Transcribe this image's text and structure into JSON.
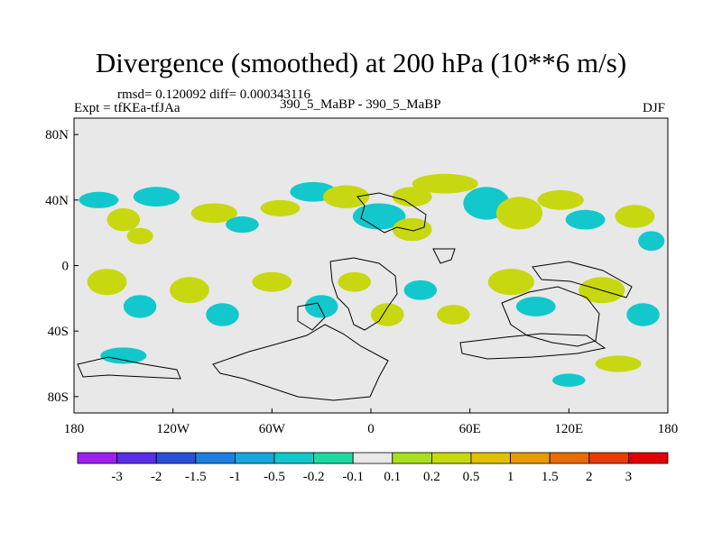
{
  "chart_data": {
    "type": "heatmap",
    "title": "Divergence (smoothed) at 200 hPa (10**6 m/s)",
    "stats_text": "rmsd= 0.120092 diff= 0.000343116",
    "left_label": "Expt = tfKEa-tfJAa",
    "center_label": "390_5_MaBP - 390_5_MaBP",
    "right_label": "DJF",
    "x_ticks": [
      {
        "value": -180,
        "label": "180"
      },
      {
        "value": -120,
        "label": "120W"
      },
      {
        "value": -60,
        "label": "60W"
      },
      {
        "value": 0,
        "label": "0"
      },
      {
        "value": 60,
        "label": "60E"
      },
      {
        "value": 120,
        "label": "120E"
      },
      {
        "value": 180,
        "label": "180"
      }
    ],
    "y_ticks": [
      {
        "value": 80,
        "label": "80N"
      },
      {
        "value": 40,
        "label": "40N"
      },
      {
        "value": 0,
        "label": "0"
      },
      {
        "value": -40,
        "label": "40S"
      },
      {
        "value": -80,
        "label": "80S"
      }
    ],
    "xlim": [
      -180,
      180
    ],
    "ylim": [
      -90,
      90
    ],
    "colorbar": {
      "labels": [
        "-3",
        "-2",
        "-1.5",
        "-1",
        "-0.5",
        "-0.2",
        "-0.1",
        "0.1",
        "0.2",
        "0.5",
        "1",
        "1.5",
        "2",
        "3"
      ],
      "colors": [
        "#a020f0",
        "#5a2ee8",
        "#2a4fd8",
        "#1e7ee0",
        "#16a8dc",
        "#12c8cc",
        "#1ed9a0",
        "#e8e8e8",
        "#a8e020",
        "#c8d810",
        "#e0c000",
        "#e89a00",
        "#e86c00",
        "#e83c00",
        "#e00000"
      ]
    },
    "anomalies": [
      {
        "lon": -165,
        "lat": 40,
        "rx": 12,
        "ry": 5,
        "v": -0.3
      },
      {
        "lon": -150,
        "lat": 28,
        "rx": 10,
        "ry": 7,
        "v": 0.3
      },
      {
        "lon": -130,
        "lat": 42,
        "rx": 14,
        "ry": 6,
        "v": -0.3
      },
      {
        "lon": -140,
        "lat": 18,
        "rx": 8,
        "ry": 5,
        "v": 0.3
      },
      {
        "lon": -95,
        "lat": 32,
        "rx": 14,
        "ry": 6,
        "v": 0.3
      },
      {
        "lon": -78,
        "lat": 25,
        "rx": 10,
        "ry": 5,
        "v": -0.3
      },
      {
        "lon": -55,
        "lat": 35,
        "rx": 12,
        "ry": 5,
        "v": 0.3
      },
      {
        "lon": -35,
        "lat": 45,
        "rx": 14,
        "ry": 6,
        "v": -0.3
      },
      {
        "lon": -15,
        "lat": 42,
        "rx": 14,
        "ry": 7,
        "v": 0.3
      },
      {
        "lon": 5,
        "lat": 30,
        "rx": 16,
        "ry": 8,
        "v": -0.5
      },
      {
        "lon": 25,
        "lat": 42,
        "rx": 12,
        "ry": 6,
        "v": 0.3
      },
      {
        "lon": 25,
        "lat": 22,
        "rx": 12,
        "ry": 7,
        "v": 0.3
      },
      {
        "lon": 45,
        "lat": 50,
        "rx": 20,
        "ry": 6,
        "v": 0.3
      },
      {
        "lon": 70,
        "lat": 38,
        "rx": 14,
        "ry": 10,
        "v": -0.5
      },
      {
        "lon": 90,
        "lat": 32,
        "rx": 14,
        "ry": 10,
        "v": 0.3
      },
      {
        "lon": 115,
        "lat": 40,
        "rx": 14,
        "ry": 6,
        "v": 0.3
      },
      {
        "lon": 130,
        "lat": 28,
        "rx": 12,
        "ry": 6,
        "v": -0.3
      },
      {
        "lon": 160,
        "lat": 30,
        "rx": 12,
        "ry": 7,
        "v": 0.3
      },
      {
        "lon": 170,
        "lat": 15,
        "rx": 8,
        "ry": 6,
        "v": -0.3
      },
      {
        "lon": -160,
        "lat": -10,
        "rx": 12,
        "ry": 8,
        "v": 0.3
      },
      {
        "lon": -140,
        "lat": -25,
        "rx": 10,
        "ry": 7,
        "v": -0.3
      },
      {
        "lon": -110,
        "lat": -15,
        "rx": 12,
        "ry": 8,
        "v": 0.3
      },
      {
        "lon": -90,
        "lat": -30,
        "rx": 10,
        "ry": 7,
        "v": -0.3
      },
      {
        "lon": -60,
        "lat": -10,
        "rx": 12,
        "ry": 6,
        "v": 0.3
      },
      {
        "lon": -30,
        "lat": -25,
        "rx": 10,
        "ry": 7,
        "v": -0.3
      },
      {
        "lon": -10,
        "lat": -10,
        "rx": 10,
        "ry": 6,
        "v": 0.3
      },
      {
        "lon": 10,
        "lat": -30,
        "rx": 10,
        "ry": 7,
        "v": 0.3
      },
      {
        "lon": 30,
        "lat": -15,
        "rx": 10,
        "ry": 6,
        "v": -0.3
      },
      {
        "lon": 50,
        "lat": -30,
        "rx": 10,
        "ry": 6,
        "v": 0.3
      },
      {
        "lon": 85,
        "lat": -10,
        "rx": 14,
        "ry": 8,
        "v": 0.3
      },
      {
        "lon": 100,
        "lat": -25,
        "rx": 12,
        "ry": 6,
        "v": -0.3
      },
      {
        "lon": 140,
        "lat": -15,
        "rx": 14,
        "ry": 8,
        "v": 0.3
      },
      {
        "lon": 165,
        "lat": -30,
        "rx": 10,
        "ry": 7,
        "v": -0.3
      },
      {
        "lon": -150,
        "lat": -55,
        "rx": 14,
        "ry": 5,
        "v": -0.3
      },
      {
        "lon": 150,
        "lat": -60,
        "rx": 14,
        "ry": 5,
        "v": 0.3
      },
      {
        "lon": 120,
        "lat": -70,
        "rx": 10,
        "ry": 4,
        "v": -0.3
      }
    ]
  }
}
